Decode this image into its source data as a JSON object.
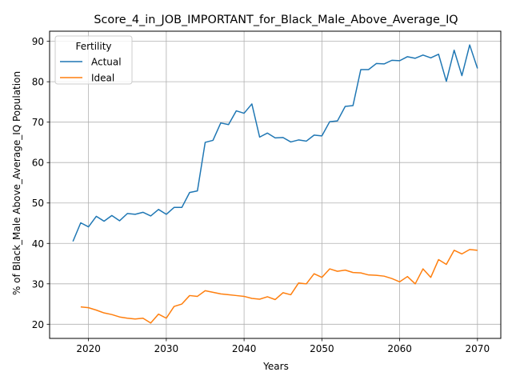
{
  "chart_data": {
    "type": "line",
    "title": "Score_4_in_JOB_IMPORTANT_for_Black_Male_Above_Average_IQ",
    "xlabel": "Years",
    "ylabel": "% of Black_Male Above_Average_IQ Population",
    "xlim": [
      2015,
      2073
    ],
    "ylim": [
      16.5,
      92.5
    ],
    "xticks": [
      2020,
      2030,
      2040,
      2050,
      2060,
      2070
    ],
    "yticks": [
      20,
      30,
      40,
      50,
      60,
      70,
      80,
      90
    ],
    "grid": true,
    "legend": {
      "title": "Fertility",
      "placement": "top-left"
    },
    "series": [
      {
        "name": "Actual",
        "color": "#1f77b4",
        "x": [
          2018,
          2019,
          2020,
          2021,
          2022,
          2023,
          2024,
          2025,
          2026,
          2027,
          2028,
          2029,
          2030,
          2031,
          2032,
          2033,
          2034,
          2035,
          2036,
          2037,
          2038,
          2039,
          2040,
          2041,
          2042,
          2043,
          2044,
          2045,
          2046,
          2047,
          2048,
          2049,
          2050,
          2051,
          2052,
          2053,
          2054,
          2055,
          2056,
          2057,
          2058,
          2059,
          2060,
          2061,
          2062,
          2063,
          2064,
          2065,
          2066,
          2067,
          2068,
          2069,
          2070
        ],
        "values": [
          40.5,
          45.1,
          44.1,
          46.7,
          45.5,
          46.9,
          45.6,
          47.4,
          47.2,
          47.7,
          46.8,
          48.4,
          47.2,
          48.9,
          48.9,
          52.6,
          53.0,
          65.0,
          65.5,
          69.8,
          69.4,
          72.8,
          72.2,
          74.5,
          66.3,
          67.3,
          66.1,
          66.2,
          65.1,
          65.6,
          65.3,
          66.8,
          66.6,
          70.1,
          70.3,
          73.9,
          74.1,
          83.0,
          83.0,
          84.5,
          84.4,
          85.3,
          85.2,
          86.2,
          85.8,
          86.6,
          85.9,
          86.8,
          80.1,
          87.8,
          81.5,
          89.1,
          83.3
        ]
      },
      {
        "name": "Ideal",
        "color": "#ff7f0e",
        "x": [
          2019,
          2020,
          2021,
          2022,
          2023,
          2024,
          2025,
          2026,
          2027,
          2028,
          2029,
          2030,
          2031,
          2032,
          2033,
          2034,
          2035,
          2036,
          2037,
          2038,
          2039,
          2040,
          2041,
          2042,
          2043,
          2044,
          2045,
          2046,
          2047,
          2048,
          2049,
          2050,
          2051,
          2052,
          2053,
          2054,
          2055,
          2056,
          2057,
          2058,
          2059,
          2060,
          2061,
          2062,
          2063,
          2064,
          2065,
          2066,
          2067,
          2068,
          2069,
          2070
        ],
        "values": [
          24.3,
          24.1,
          23.5,
          22.8,
          22.4,
          21.8,
          21.5,
          21.3,
          21.5,
          20.3,
          22.5,
          21.5,
          24.4,
          25.0,
          27.1,
          26.9,
          28.3,
          27.9,
          27.5,
          27.3,
          27.1,
          26.9,
          26.4,
          26.2,
          26.8,
          26.1,
          27.8,
          27.3,
          30.2,
          30.0,
          32.5,
          31.6,
          33.7,
          33.1,
          33.4,
          32.8,
          32.7,
          32.2,
          32.1,
          31.9,
          31.3,
          30.5,
          31.8,
          30.0,
          33.7,
          31.6,
          36.0,
          34.8,
          38.3,
          37.4,
          38.5,
          38.3
        ]
      }
    ]
  }
}
